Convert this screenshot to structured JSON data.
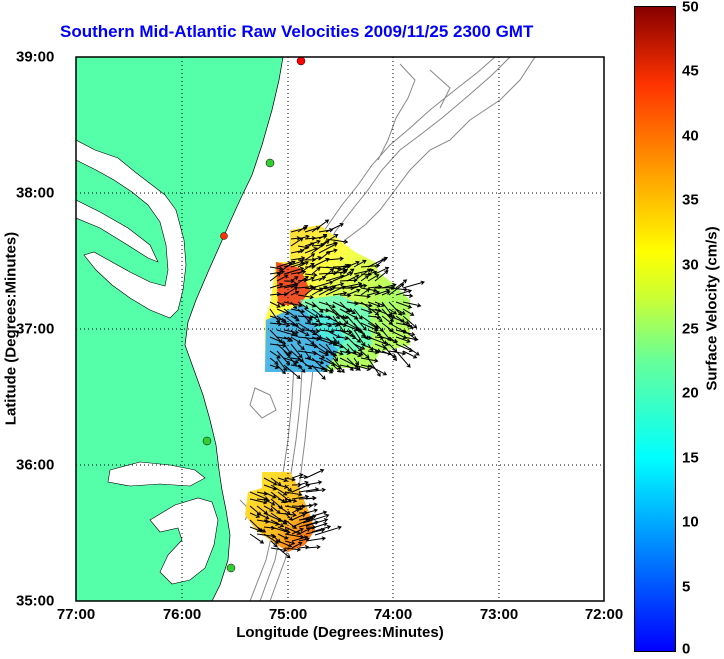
{
  "title": "Southern Mid-Atlantic Raw Velocities 2009/11/25 2300 GMT",
  "x_axis": {
    "label": "Longitude (Degrees:Minutes)",
    "ticks": [
      "77:00",
      "76:00",
      "75:00",
      "74:00",
      "73:00",
      "72:00"
    ]
  },
  "y_axis": {
    "label": "Latitude (Degrees:Minutes)",
    "ticks": [
      "39:00",
      "38:00",
      "37:00",
      "36:00",
      "35:00"
    ]
  },
  "colorbar": {
    "label": "Surface Velocity (cm/s)",
    "ticks": [
      "50",
      "45",
      "40",
      "35",
      "30",
      "25",
      "20",
      "15",
      "10",
      "5",
      "0"
    ],
    "range": [
      0,
      50
    ],
    "colormap": "jet"
  },
  "map": {
    "lon_range": [
      -77,
      -72
    ],
    "lat_range": [
      35,
      39
    ],
    "land_color": "#55ffaa",
    "water_color": "#ffffff",
    "bathymetry_color": "#888888",
    "grid": "dotted",
    "vector_color": "#000000",
    "station_markers": [
      {
        "color": "#ff0000"
      },
      {
        "color": "#33cc33"
      },
      {
        "color": "#ff3300"
      },
      {
        "color": "#33cc33"
      },
      {
        "color": "#33cc33"
      }
    ]
  }
}
